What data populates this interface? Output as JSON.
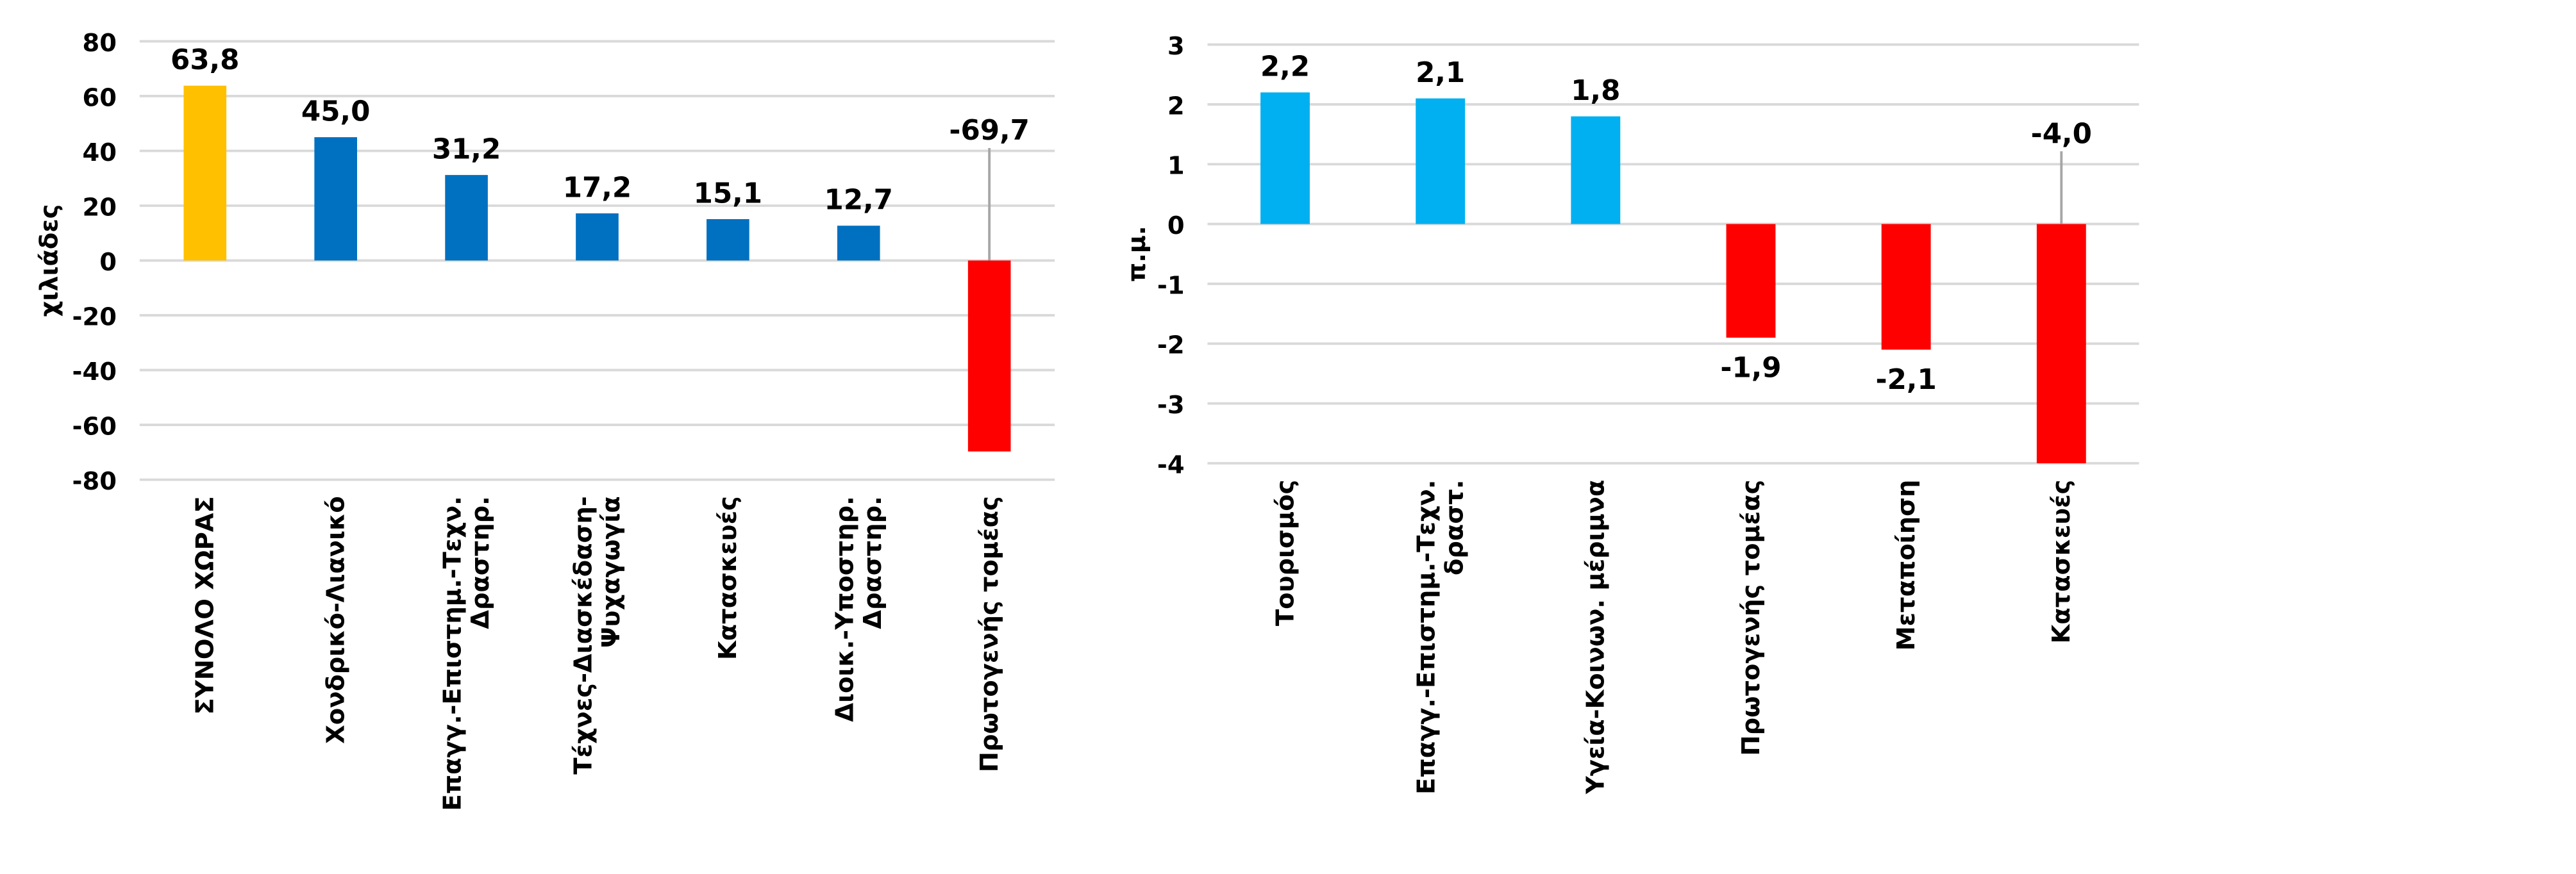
{
  "chart_data": [
    {
      "type": "bar",
      "y_label": "χιλιάδες",
      "categories": [
        "ΣΥΝΟΛΟ ΧΩΡΑΣ",
        "Χονδρικό-Λιανικό",
        "Επαγγ.-Επιστημ.-Τεχν.\nΔραστηρ.",
        "Τέχνες-Διασκέδαση-\nΨυχαγωγία",
        "Κατασκευές",
        "Διοικ.-Υποστηρ.\nΔραστηρ.",
        "Πρωτογενής τομέας"
      ],
      "values": [
        63.8,
        45.0,
        31.2,
        17.2,
        15.1,
        12.7,
        -69.7
      ],
      "value_labels": [
        "63,8",
        "45,0",
        "31,2",
        "17,2",
        "15,1",
        "12,7",
        "-69,7"
      ],
      "colors": [
        "#FFC000",
        "#0070C0",
        "#0070C0",
        "#0070C0",
        "#0070C0",
        "#0070C0",
        "#FF0000"
      ],
      "label_colors": [
        "#000000",
        "#0070C0",
        "#0070C0",
        "#0070C0",
        "#0070C0",
        "#0070C0",
        "#FF0000"
      ],
      "ylim": [
        -80,
        80
      ],
      "yticks": [
        -80,
        -60,
        -40,
        -20,
        0,
        20,
        40,
        60,
        80
      ],
      "grid": true
    },
    {
      "type": "bar",
      "y_label": "π.μ.",
      "categories": [
        "Τουρισμός",
        "Επαγγ.-Επιστημ.-Τεχν.\nδραστ.",
        "Υγεία-Κοινων. μέριμνα",
        "Πρωτογενής τομέας",
        "Μεταποίηση",
        "Κατασκευές"
      ],
      "values": [
        2.2,
        2.1,
        1.8,
        -1.9,
        -2.1,
        -4.0
      ],
      "value_labels": [
        "2,2",
        "2,1",
        "1,8",
        "-1,9",
        "-2,1",
        "-4,0"
      ],
      "colors": [
        "#00B0F0",
        "#00B0F0",
        "#00B0F0",
        "#FF0000",
        "#FF0000",
        "#FF0000"
      ],
      "label_colors": [
        "#00B0F0",
        "#00B0F0",
        "#00B0F0",
        "#FF0000",
        "#FF0000",
        "#FF0000"
      ],
      "ylim": [
        -4,
        3
      ],
      "yticks": [
        -4,
        -3,
        -2,
        -1,
        0,
        1,
        2,
        3
      ],
      "grid": true
    }
  ]
}
